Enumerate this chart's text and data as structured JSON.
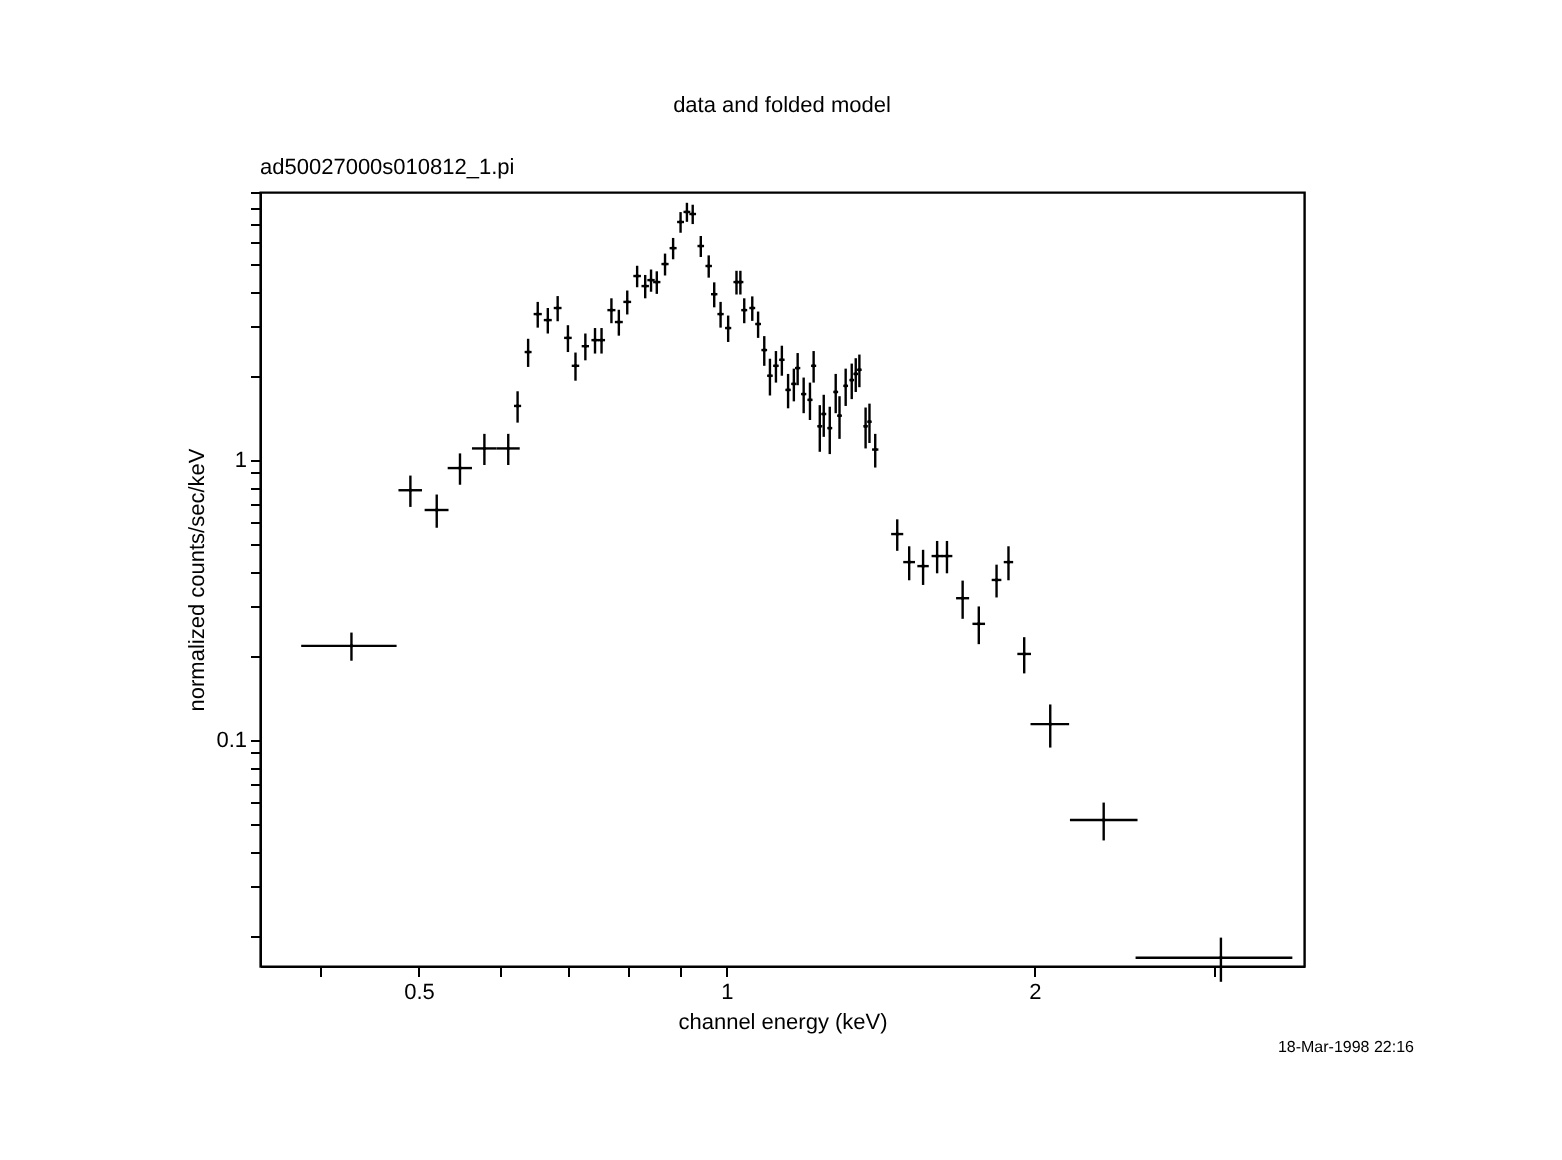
{
  "chart_data": {
    "type": "scatter",
    "title": "data and folded model",
    "xlabel": "channel energy (keV)",
    "ylabel": "normalized counts/sec/keV",
    "annotations": [
      "ad50027000s010812_1.pi",
      "18-Mar-1998 22:16"
    ],
    "log": "xy",
    "grid": false,
    "x": [
      0.43,
      0.491,
      0.521,
      0.549,
      0.58,
      0.612,
      0.625,
      0.64,
      0.654,
      0.669,
      0.684,
      0.7,
      0.712,
      0.728,
      0.744,
      0.755,
      0.772,
      0.785,
      0.8,
      0.818,
      0.833,
      0.844,
      0.855,
      0.871,
      0.887,
      0.902,
      0.915,
      0.927,
      0.944,
      0.961,
      0.973,
      0.987,
      1.004,
      1.023,
      1.032,
      1.041,
      1.06,
      1.074,
      1.089,
      1.103,
      1.118,
      1.133,
      1.149,
      1.164,
      1.174,
      1.19,
      1.207,
      1.217,
      1.234,
      1.245,
      1.262,
      1.279,
      1.29,
      1.308,
      1.326,
      1.338,
      1.349,
      1.368,
      1.38,
      1.398,
      1.469,
      1.509,
      1.557,
      1.607,
      1.643,
      1.702,
      1.765,
      1.837,
      1.887,
      1.955,
      2.073,
      2.338,
      3.044
    ],
    "series": [
      {
        "color": "#000000",
        "values": [
          0.217,
          0.78,
          0.663,
          0.936,
          1.1,
          1.1,
          1.56,
          2.43,
          3.32,
          3.16,
          3.49,
          2.73,
          2.17,
          2.55,
          2.68,
          2.68,
          3.43,
          3.11,
          3.67,
          4.54,
          4.18,
          4.39,
          4.32,
          5.01,
          5.71,
          7.08,
          7.69,
          7.56,
          5.81,
          4.93,
          3.91,
          3.32,
          2.96,
          4.32,
          4.32,
          3.43,
          3.49,
          3.06,
          2.47,
          2.0,
          2.17,
          2.28,
          1.78,
          1.87,
          2.13,
          1.72,
          1.64,
          2.17,
          1.32,
          1.46,
          1.3,
          1.75,
          1.44,
          1.84,
          1.93,
          2.03,
          2.1,
          1.32,
          1.37,
          1.09,
          0.544,
          0.432,
          0.418,
          0.454,
          0.454,
          0.321,
          0.26,
          0.373,
          0.432,
          0.203,
          0.114,
          0.0518,
          0.0167
        ],
        "errors": [
          0.025,
          0.1,
          0.09,
          0.12,
          0.14,
          0.14,
          0.2,
          0.28,
          0.35,
          0.33,
          0.36,
          0.3,
          0.25,
          0.28,
          0.28,
          0.28,
          0.35,
          0.33,
          0.36,
          0.4,
          0.4,
          0.4,
          0.4,
          0.45,
          0.5,
          0.6,
          0.6,
          0.6,
          0.5,
          0.45,
          0.4,
          0.35,
          0.32,
          0.42,
          0.42,
          0.35,
          0.35,
          0.33,
          0.3,
          0.3,
          0.28,
          0.28,
          0.25,
          0.25,
          0.28,
          0.25,
          0.25,
          0.28,
          0.25,
          0.25,
          0.25,
          0.28,
          0.25,
          0.28,
          0.28,
          0.28,
          0.28,
          0.22,
          0.22,
          0.15,
          0.07,
          0.06,
          0.06,
          0.06,
          0.06,
          0.05,
          0.04,
          0.05,
          0.06,
          0.03,
          0.02,
          0.008,
          0.003
        ],
        "xerrors": [
          [
            0.384,
            0.476
          ],
          0.013,
          0.014,
          0.015,
          0.016,
          0.016,
          0.005,
          0.005,
          0.006,
          0.006,
          0.006,
          0.006,
          0.006,
          0.006,
          0.006,
          0.006,
          0.007,
          0.007,
          0.007,
          0.007,
          0.007,
          0.007,
          0.007,
          0.007,
          0.007,
          0.007,
          0.007,
          0.007,
          0.007,
          0.007,
          0.007,
          0.007,
          0.007,
          0.007,
          0.007,
          0.007,
          0.007,
          0.007,
          0.007,
          0.007,
          0.007,
          0.007,
          0.007,
          0.007,
          0.007,
          0.007,
          0.007,
          0.007,
          0.007,
          0.007,
          0.007,
          0.007,
          0.007,
          0.007,
          0.007,
          0.007,
          0.007,
          0.007,
          0.007,
          0.01,
          0.02,
          0.02,
          0.02,
          0.02,
          0.02,
          0.025,
          0.025,
          0.02,
          0.02,
          0.03,
          0.09,
          [
            2.167,
            2.523
          ],
          [
            2.512,
            3.575
          ]
        ]
      }
    ],
    "xlim": [
      0.35,
      3.67
    ],
    "ylim": [
      0.0156,
      9.06
    ],
    "xticks": [
      {
        "value": 0.4,
        "label": null
      },
      0.5,
      {
        "value": 0.6,
        "label": null
      },
      {
        "value": 0.7,
        "label": null
      },
      {
        "value": 0.8,
        "label": null
      },
      {
        "value": 0.9,
        "label": null
      },
      1,
      2,
      {
        "value": 3,
        "label": null
      }
    ],
    "yticks": [
      {
        "value": 0.02,
        "label": null
      },
      {
        "value": 0.03,
        "label": null
      },
      {
        "value": 0.04,
        "label": null
      },
      {
        "value": 0.05,
        "label": null
      },
      {
        "value": 0.06,
        "label": null
      },
      {
        "value": 0.07,
        "label": null
      },
      {
        "value": 0.08,
        "label": null
      },
      {
        "value": 0.09,
        "label": null
      },
      0.1,
      {
        "value": 0.2,
        "label": null
      },
      {
        "value": 0.3,
        "label": null
      },
      {
        "value": 0.4,
        "label": null
      },
      {
        "value": 0.5,
        "label": null
      },
      {
        "value": 0.6,
        "label": null
      },
      {
        "value": 0.7,
        "label": null
      },
      {
        "value": 0.8,
        "label": null
      },
      {
        "value": 0.9,
        "label": null
      },
      1,
      {
        "value": 2,
        "label": null
      },
      {
        "value": 3,
        "label": null
      },
      {
        "value": 4,
        "label": null
      },
      {
        "value": 5,
        "label": null
      },
      {
        "value": 6,
        "label": null
      },
      {
        "value": 7,
        "label": null
      },
      {
        "value": 8,
        "label": null
      },
      {
        "value": 9,
        "label": null
      }
    ]
  }
}
